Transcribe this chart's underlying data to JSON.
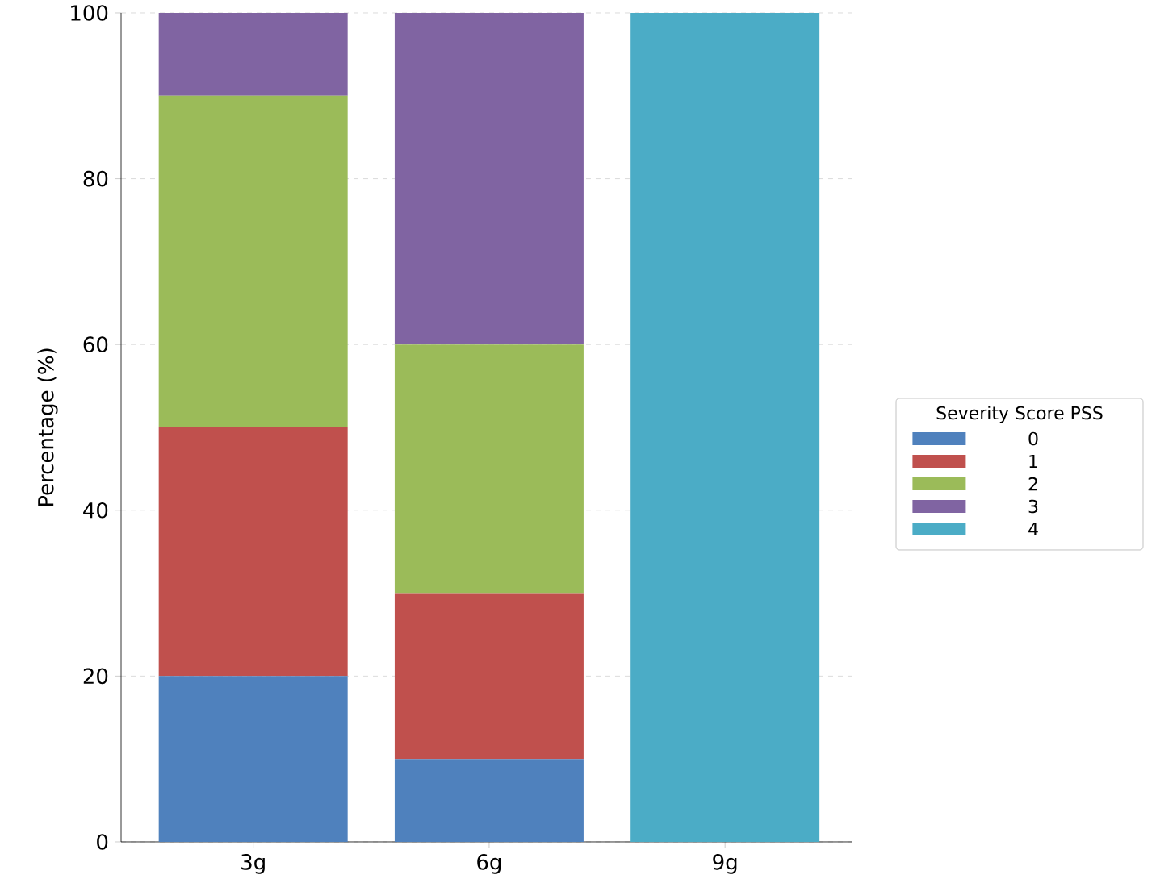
{
  "chart_data": {
    "type": "bar",
    "stacked": true,
    "ylabel": "Percentage (%)",
    "legend_title": "Severity Score PSS",
    "categories": [
      "3g",
      "6g",
      "9g"
    ],
    "series": [
      {
        "name": "0",
        "color": "#4f81bd",
        "values": [
          20,
          10,
          0
        ]
      },
      {
        "name": "1",
        "color": "#c0504d",
        "values": [
          30,
          20,
          0
        ]
      },
      {
        "name": "2",
        "color": "#9bbb59",
        "values": [
          40,
          30,
          0
        ]
      },
      {
        "name": "3",
        "color": "#8064a2",
        "values": [
          10,
          40,
          0
        ]
      },
      {
        "name": "4",
        "color": "#4bacc6",
        "values": [
          0,
          0,
          100
        ]
      }
    ],
    "ylim": [
      0,
      100
    ],
    "yticks": [
      0,
      20,
      40,
      60,
      80,
      100
    ],
    "grid": true,
    "legend": "right"
  }
}
